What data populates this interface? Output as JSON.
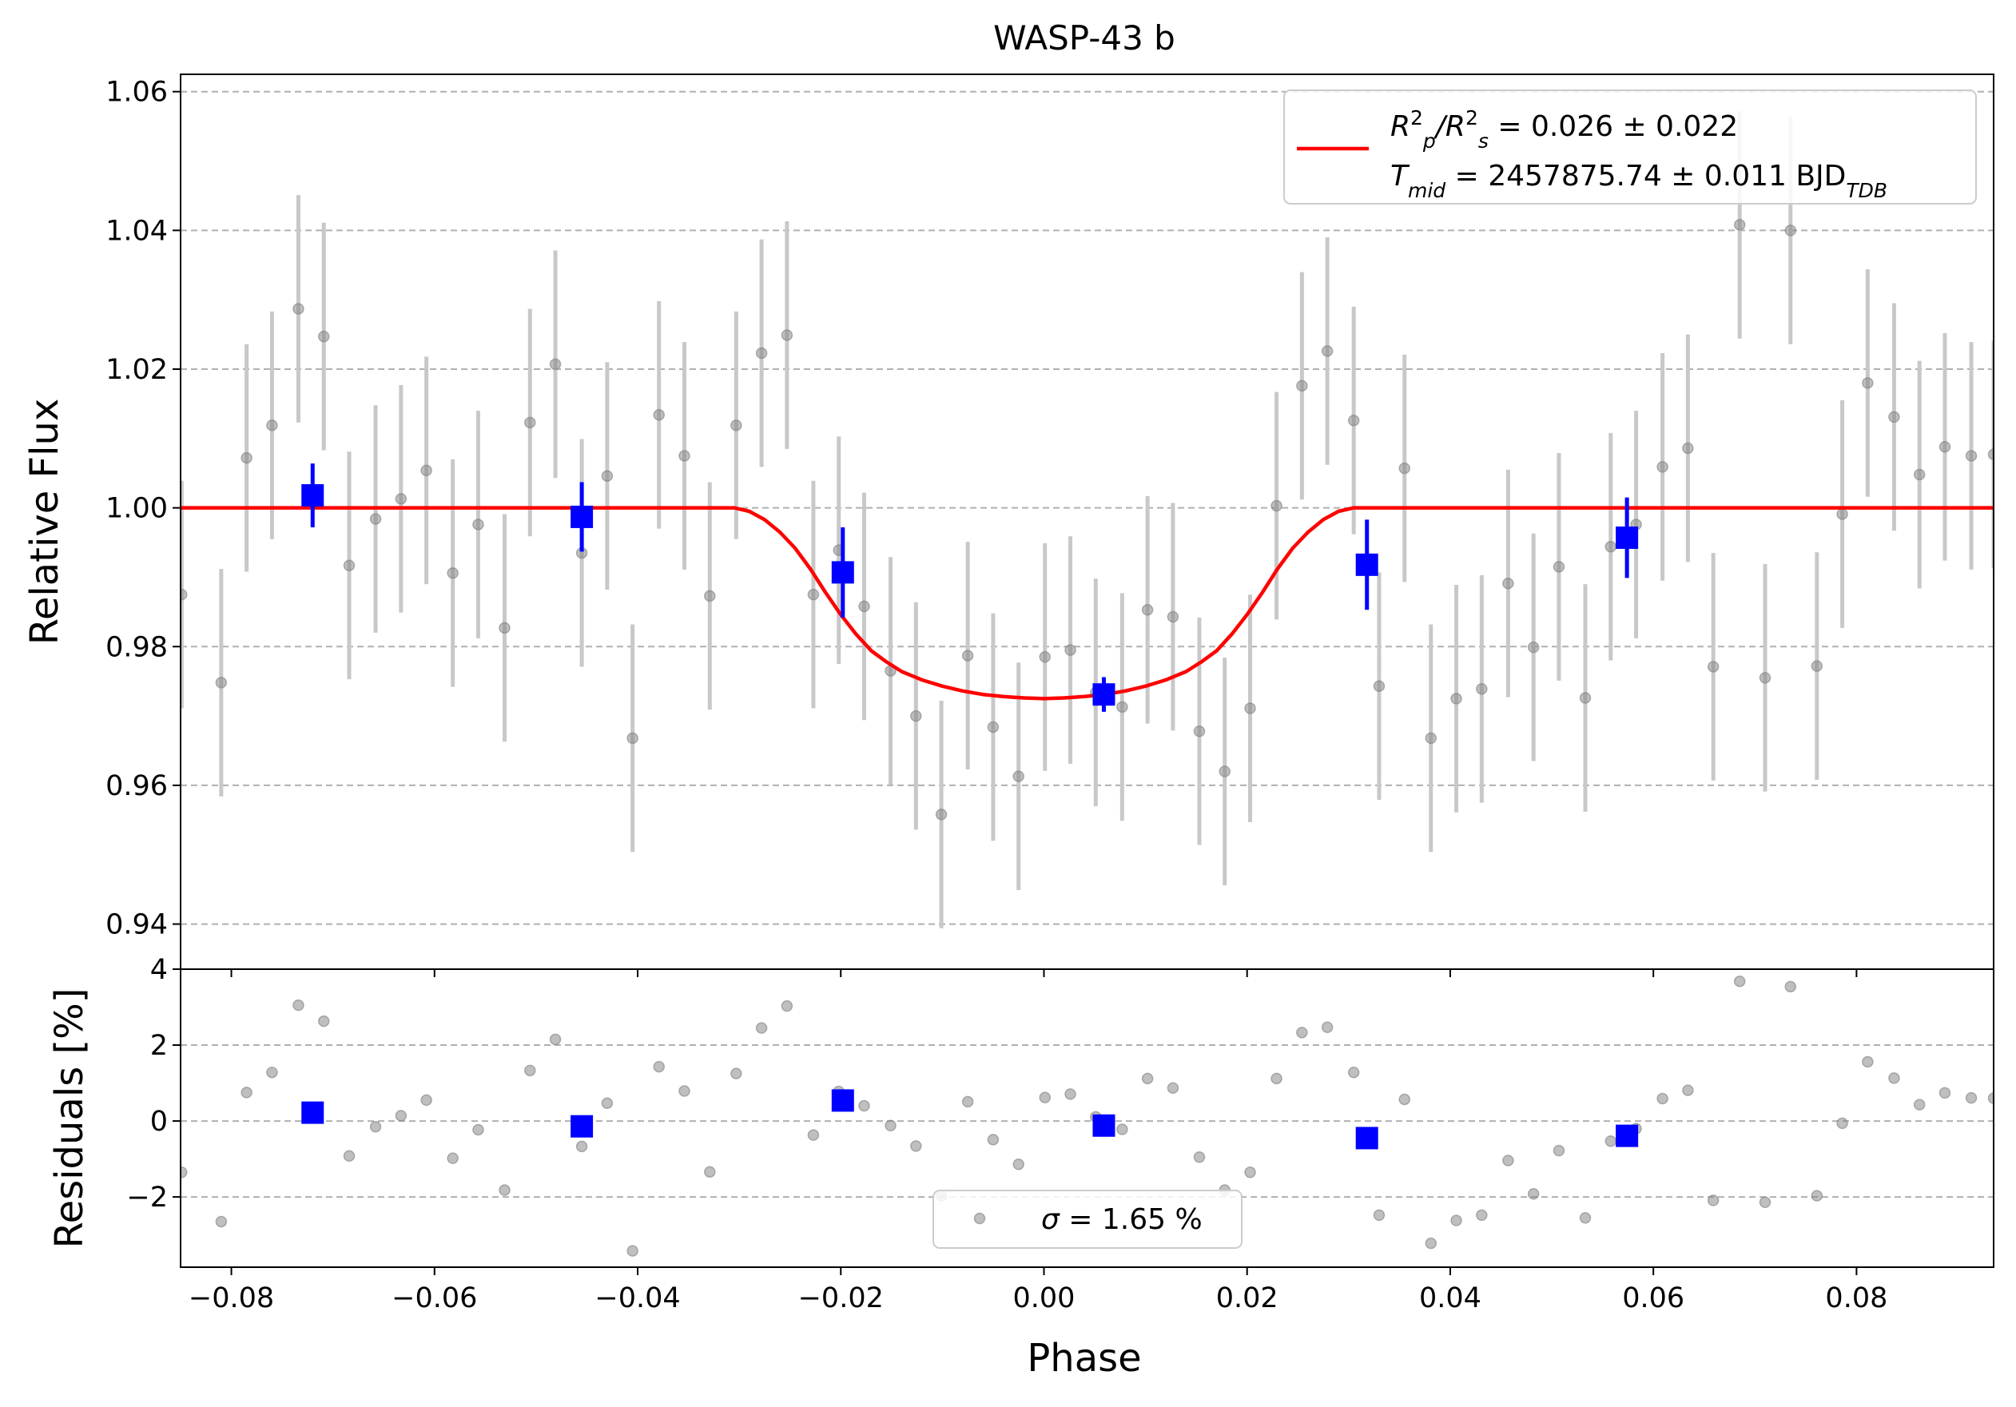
{
  "chart_data": {
    "type": "scatter",
    "title": "WASP-43 b",
    "xlabel": "Phase",
    "xlim": [
      -0.085,
      0.0935
    ],
    "x_ticks": [
      -0.08,
      -0.06,
      -0.04,
      -0.02,
      0.0,
      0.02,
      0.04,
      0.06,
      0.08
    ],
    "x_tick_labels": [
      "−0.08",
      "−0.06",
      "−0.04",
      "−0.02",
      "0.00",
      "0.02",
      "0.04",
      "0.06",
      "0.08"
    ],
    "grid": "horizontal dashed",
    "panels": [
      {
        "name": "flux",
        "ylabel": "Relative Flux",
        "ylim": [
          0.9335,
          1.0625
        ],
        "y_ticks": [
          0.94,
          0.96,
          0.98,
          1.0,
          1.02,
          1.04,
          1.06
        ],
        "y_tick_labels": [
          "0.94",
          "0.96",
          "0.98",
          "1.00",
          "1.02",
          "1.04",
          "1.06"
        ],
        "legend_position": "top-right",
        "legend_lines": [
          {
            "parts": [
              [
                "R",
                ""
              ],
              [
                "2",
                "sup"
              ],
              [
                "p",
                "sub"
              ],
              [
                "/R",
                ""
              ],
              [
                "2",
                "sup"
              ],
              [
                "s",
                "sub"
              ],
              [
                " = 0.026 ± 0.022",
                ""
              ]
            ]
          },
          {
            "parts": [
              [
                "T",
                ""
              ],
              [
                "mid",
                "sub"
              ],
              [
                " = 2457875.74 ± 0.011 BJD",
                ""
              ],
              [
                "TDB",
                "sub"
              ]
            ]
          }
        ],
        "series": [
          {
            "kind": "raw",
            "color": "#808080",
            "x": [
              -0.0849,
              -0.081,
              -0.0785,
              -0.076,
              -0.0734,
              -0.0709,
              -0.0684,
              -0.0658,
              -0.0633,
              -0.0608,
              -0.0582,
              -0.0557,
              -0.0531,
              -0.0506,
              -0.0481,
              -0.0455,
              -0.043,
              -0.0405,
              -0.0379,
              -0.0354,
              -0.0329,
              -0.0303,
              -0.0278,
              -0.0253,
              -0.0227,
              -0.0202,
              -0.0177,
              -0.0151,
              -0.0126,
              -0.0101,
              -0.0075,
              -0.005,
              -0.0025,
              0.0001,
              0.0026,
              0.0051,
              0.0077,
              0.0102,
              0.0127,
              0.0153,
              0.0178,
              0.0203,
              0.0229,
              0.0254,
              0.0279,
              0.0305,
              0.033,
              0.0355,
              0.0381,
              0.0406,
              0.0431,
              0.0457,
              0.0482,
              0.0507,
              0.0533,
              0.0558,
              0.0583,
              0.0609,
              0.0634,
              0.0659,
              0.0685,
              0.071,
              0.0735,
              0.0761,
              0.0786,
              0.0811,
              0.0837,
              0.0862,
              0.0887,
              0.0913,
              0.0935
            ],
            "y": [
              0.9875,
              0.9748,
              1.0072,
              1.0119,
              1.0287,
              1.0247,
              0.9917,
              0.9984,
              1.0013,
              1.0054,
              0.9906,
              0.9976,
              0.9827,
              1.0123,
              1.0207,
              0.9935,
              1.0046,
              0.9668,
              1.0134,
              1.0075,
              0.9873,
              1.0119,
              1.0223,
              1.0249,
              0.9875,
              0.9939,
              0.9858,
              0.9765,
              0.97,
              0.9558,
              0.9787,
              0.9684,
              0.9613,
              0.9785,
              0.9795,
              0.9734,
              0.9713,
              0.9853,
              0.9843,
              0.9678,
              0.962,
              0.9711,
              1.0003,
              1.0176,
              1.0226,
              1.0126,
              0.9743,
              1.0057,
              0.9668,
              0.9725,
              0.9739,
              0.9891,
              0.9799,
              0.9915,
              0.9726,
              0.9944,
              0.9976,
              1.0059,
              1.0086,
              0.9771,
              1.0408,
              0.9755,
              1.04,
              0.9772,
              0.9991,
              1.018,
              1.0131,
              1.0048,
              1.0088,
              1.0075,
              1.0077
            ],
            "err": [
              0.0164,
              0.0164,
              0.0164,
              0.0164,
              0.0164,
              0.0164,
              0.0164,
              0.0164,
              0.0164,
              0.0164,
              0.0164,
              0.0164,
              0.0164,
              0.0164,
              0.0164,
              0.0164,
              0.0164,
              0.0164,
              0.0164,
              0.0164,
              0.0164,
              0.0164,
              0.0164,
              0.0164,
              0.0164,
              0.0164,
              0.0164,
              0.0164,
              0.0164,
              0.0164,
              0.0164,
              0.0164,
              0.0164,
              0.0164,
              0.0164,
              0.0164,
              0.0164,
              0.0164,
              0.0164,
              0.0164,
              0.0164,
              0.0164,
              0.0164,
              0.0164,
              0.0164,
              0.0164,
              0.0164,
              0.0164,
              0.0164,
              0.0164,
              0.0164,
              0.0164,
              0.0164,
              0.0164,
              0.0164,
              0.0164,
              0.0164,
              0.0164,
              0.0164,
              0.0164,
              0.0164,
              0.0164,
              0.0164,
              0.0164,
              0.0164,
              0.0164,
              0.0164,
              0.0164,
              0.0164,
              0.0164,
              0.0164
            ]
          },
          {
            "kind": "binned",
            "color": "#0000ff",
            "x": [
              -0.072,
              -0.0455,
              -0.0198,
              0.0059,
              0.0318,
              0.0574
            ],
            "y": [
              1.0018,
              0.9987,
              0.9907,
              0.9731,
              0.9918,
              0.9957
            ],
            "err": [
              0.0046,
              0.005,
              0.0065,
              0.0025,
              0.0065,
              0.0058
            ]
          },
          {
            "kind": "model",
            "color": "#ff0000",
            "x": [
              -0.085,
              -0.0305,
              -0.029,
              -0.0275,
              -0.026,
              -0.0245,
              -0.023,
              -0.0215,
              -0.02,
              -0.0185,
              -0.017,
              -0.0155,
              -0.014,
              -0.012,
              -0.01,
              -0.008,
              -0.006,
              -0.004,
              -0.002,
              0.0,
              0.002,
              0.004,
              0.006,
              0.008,
              0.01,
              0.012,
              0.014,
              0.0155,
              0.017,
              0.0185,
              0.02,
              0.0215,
              0.023,
              0.0245,
              0.026,
              0.0275,
              0.029,
              0.0305,
              0.0935
            ],
            "y": [
              1.0,
              1.0,
              0.9995,
              0.9983,
              0.9965,
              0.9942,
              0.9912,
              0.9878,
              0.9846,
              0.9818,
              0.9794,
              0.9778,
              0.9764,
              0.9752,
              0.9743,
              0.9736,
              0.9731,
              0.9728,
              0.9726,
              0.9725,
              0.9726,
              0.9728,
              0.9731,
              0.9736,
              0.9743,
              0.9752,
              0.9764,
              0.9778,
              0.9794,
              0.9818,
              0.9846,
              0.9878,
              0.9912,
              0.9942,
              0.9965,
              0.9983,
              0.9995,
              1.0,
              1.0
            ]
          }
        ]
      },
      {
        "name": "residuals",
        "ylabel": "Residuals [%]",
        "ylim": [
          -3.85,
          4.0
        ],
        "y_ticks": [
          -2,
          0,
          2,
          4
        ],
        "y_tick_labels": [
          "−2",
          "0",
          "2",
          "4"
        ],
        "legend_position": "bottom-center",
        "legend_lines": [
          {
            "parts": [
              [
                "σ",
                ""
              ],
              [
                " = 1.65 %",
                ""
              ]
            ]
          }
        ],
        "series": [
          {
            "kind": "raw",
            "color": "#808080",
            "x": [
              -0.0849,
              -0.081,
              -0.0785,
              -0.076,
              -0.0734,
              -0.0709,
              -0.0684,
              -0.0658,
              -0.0633,
              -0.0608,
              -0.0582,
              -0.0557,
              -0.0531,
              -0.0506,
              -0.0481,
              -0.0455,
              -0.043,
              -0.0405,
              -0.0379,
              -0.0354,
              -0.0329,
              -0.0303,
              -0.0278,
              -0.0253,
              -0.0227,
              -0.0202,
              -0.0177,
              -0.0151,
              -0.0126,
              -0.0101,
              -0.0075,
              -0.005,
              -0.0025,
              0.0001,
              0.0026,
              0.0051,
              0.0077,
              0.0102,
              0.0127,
              0.0153,
              0.0178,
              0.0203,
              0.0229,
              0.0254,
              0.0279,
              0.0305,
              0.033,
              0.0355,
              0.0381,
              0.0406,
              0.0431,
              0.0457,
              0.0482,
              0.0507,
              0.0533,
              0.0558,
              0.0583,
              0.0609,
              0.0634,
              0.0659,
              0.0685,
              0.071,
              0.0735,
              0.0761,
              0.0786,
              0.0811,
              0.0837,
              0.0862,
              0.0887,
              0.0913,
              0.0935
            ],
            "y": [
              -1.35,
              -2.65,
              0.75,
              1.28,
              3.05,
              2.63,
              -0.92,
              -0.15,
              0.14,
              0.55,
              -0.98,
              -0.23,
              -1.82,
              1.33,
              2.15,
              -0.67,
              0.47,
              -3.42,
              1.43,
              0.79,
              -1.34,
              1.25,
              2.45,
              3.03,
              -0.37,
              0.78,
              0.4,
              -0.12,
              -0.66,
              -1.97,
              0.51,
              -0.49,
              -1.14,
              0.62,
              0.71,
              0.11,
              -0.22,
              1.12,
              0.87,
              -0.95,
              -1.82,
              -1.35,
              1.12,
              2.33,
              2.47,
              1.28,
              -2.48,
              0.57,
              -3.22,
              -2.62,
              -2.48,
              -1.04,
              -1.92,
              -0.78,
              -2.55,
              -0.53,
              -0.2,
              0.59,
              0.81,
              -2.09,
              3.68,
              -2.14,
              3.54,
              -1.97,
              -0.06,
              1.56,
              1.13,
              0.43,
              0.74,
              0.61,
              0.6
            ]
          },
          {
            "kind": "binned",
            "color": "#0000ff",
            "x": [
              -0.072,
              -0.0455,
              -0.0198,
              0.0059,
              0.0318,
              0.0574
            ],
            "y": [
              0.22,
              -0.14,
              0.54,
              -0.12,
              -0.45,
              -0.39
            ]
          }
        ]
      }
    ]
  }
}
